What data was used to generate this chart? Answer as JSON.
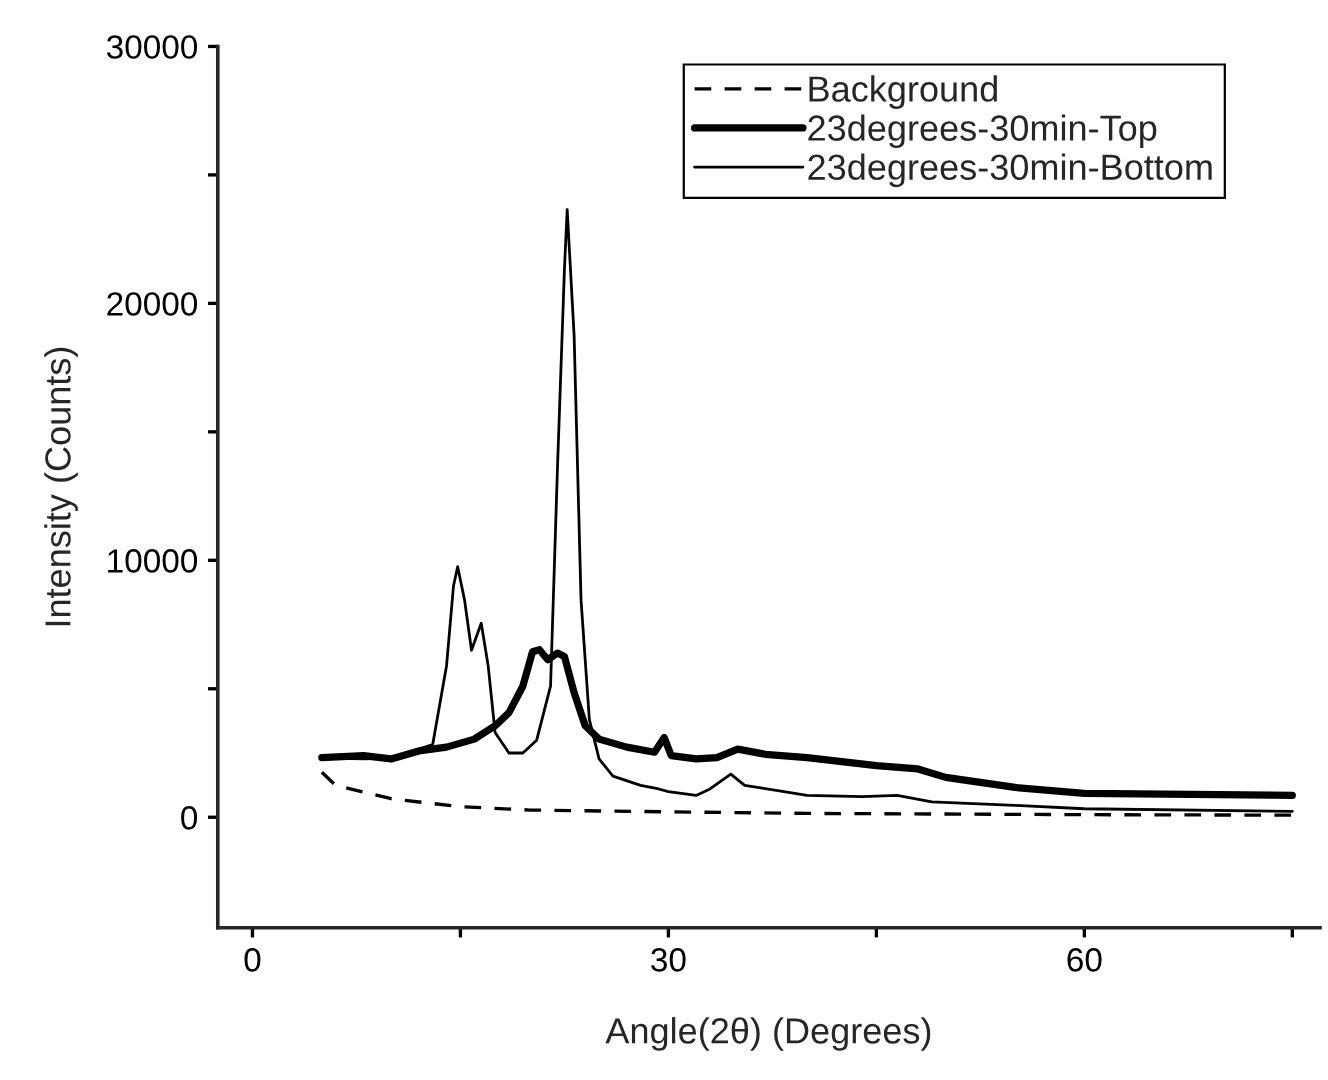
{
  "chart_data": {
    "type": "line",
    "xlabel": "Angle(2θ) (Degrees)",
    "ylabel": "Intensity (Counts)",
    "xlim": [
      -2.5,
      77
    ],
    "ylim": [
      -4300,
      30000
    ],
    "xticks": [
      0,
      {
        "value": 15,
        "label": null
      },
      30,
      {
        "value": 45,
        "label": null
      },
      60,
      {
        "value": 75,
        "label": null
      }
    ],
    "yticks": [
      0,
      {
        "value": 5000,
        "label": null
      },
      10000,
      {
        "value": 15000,
        "label": null
      },
      20000,
      {
        "value": 25000,
        "label": null
      },
      30000
    ],
    "grid": false,
    "legend": "top right",
    "marker": "none",
    "series": [
      {
        "name": "Background",
        "color": "#000000",
        "line_style": "dashed",
        "x": [
          5,
          6,
          8,
          10,
          15,
          20,
          30,
          40,
          60,
          75
        ],
        "values": [
          1750,
          1240,
          980,
          720,
          410,
          280,
          210,
          150,
          100,
          80
        ]
      },
      {
        "name": "23degrees-30min-Top",
        "color": "#000000",
        "line_style": "solid",
        "x": [
          5,
          8,
          10,
          12,
          14,
          16,
          17.5,
          18.5,
          19.5,
          20.2,
          20.7,
          21.3,
          22,
          22.5,
          23.2,
          24,
          25,
          27,
          29,
          29.7,
          30.2,
          32,
          33.5,
          35,
          37,
          40,
          45,
          48,
          50,
          55,
          60,
          75
        ],
        "values": [
          2320,
          2400,
          2270,
          2580,
          2730,
          3040,
          3560,
          4070,
          5100,
          6440,
          6520,
          6130,
          6390,
          6260,
          4850,
          3560,
          3040,
          2730,
          2530,
          3100,
          2400,
          2270,
          2320,
          2650,
          2450,
          2320,
          2010,
          1880,
          1550,
          1160,
          930,
          850
        ]
      },
      {
        "name": "23degrees-30min-Bottom",
        "color": "#000000",
        "line_style": "solid",
        "x": [
          5,
          8,
          10,
          12,
          13,
          14,
          14.5,
          14.8,
          15.3,
          15.8,
          16.5,
          17,
          17.5,
          18.5,
          19.5,
          20.5,
          21.5,
          22,
          22.5,
          22.7,
          23.2,
          23.7,
          24.3,
          25,
          26,
          28,
          29.3,
          30,
          32,
          33,
          34.5,
          35.5,
          38,
          40,
          44,
          46.5,
          49,
          55,
          60,
          75
        ],
        "values": [
          2300,
          2270,
          2300,
          2650,
          2830,
          5900,
          9000,
          9750,
          8450,
          6500,
          7550,
          5900,
          3300,
          2500,
          2500,
          3000,
          5100,
          13600,
          21300,
          23650,
          18750,
          8450,
          3800,
          2270,
          1600,
          1240,
          1100,
          1000,
          850,
          1100,
          1680,
          1240,
          1030,
          850,
          800,
          850,
          600,
          460,
          330,
          230
        ]
      }
    ]
  }
}
